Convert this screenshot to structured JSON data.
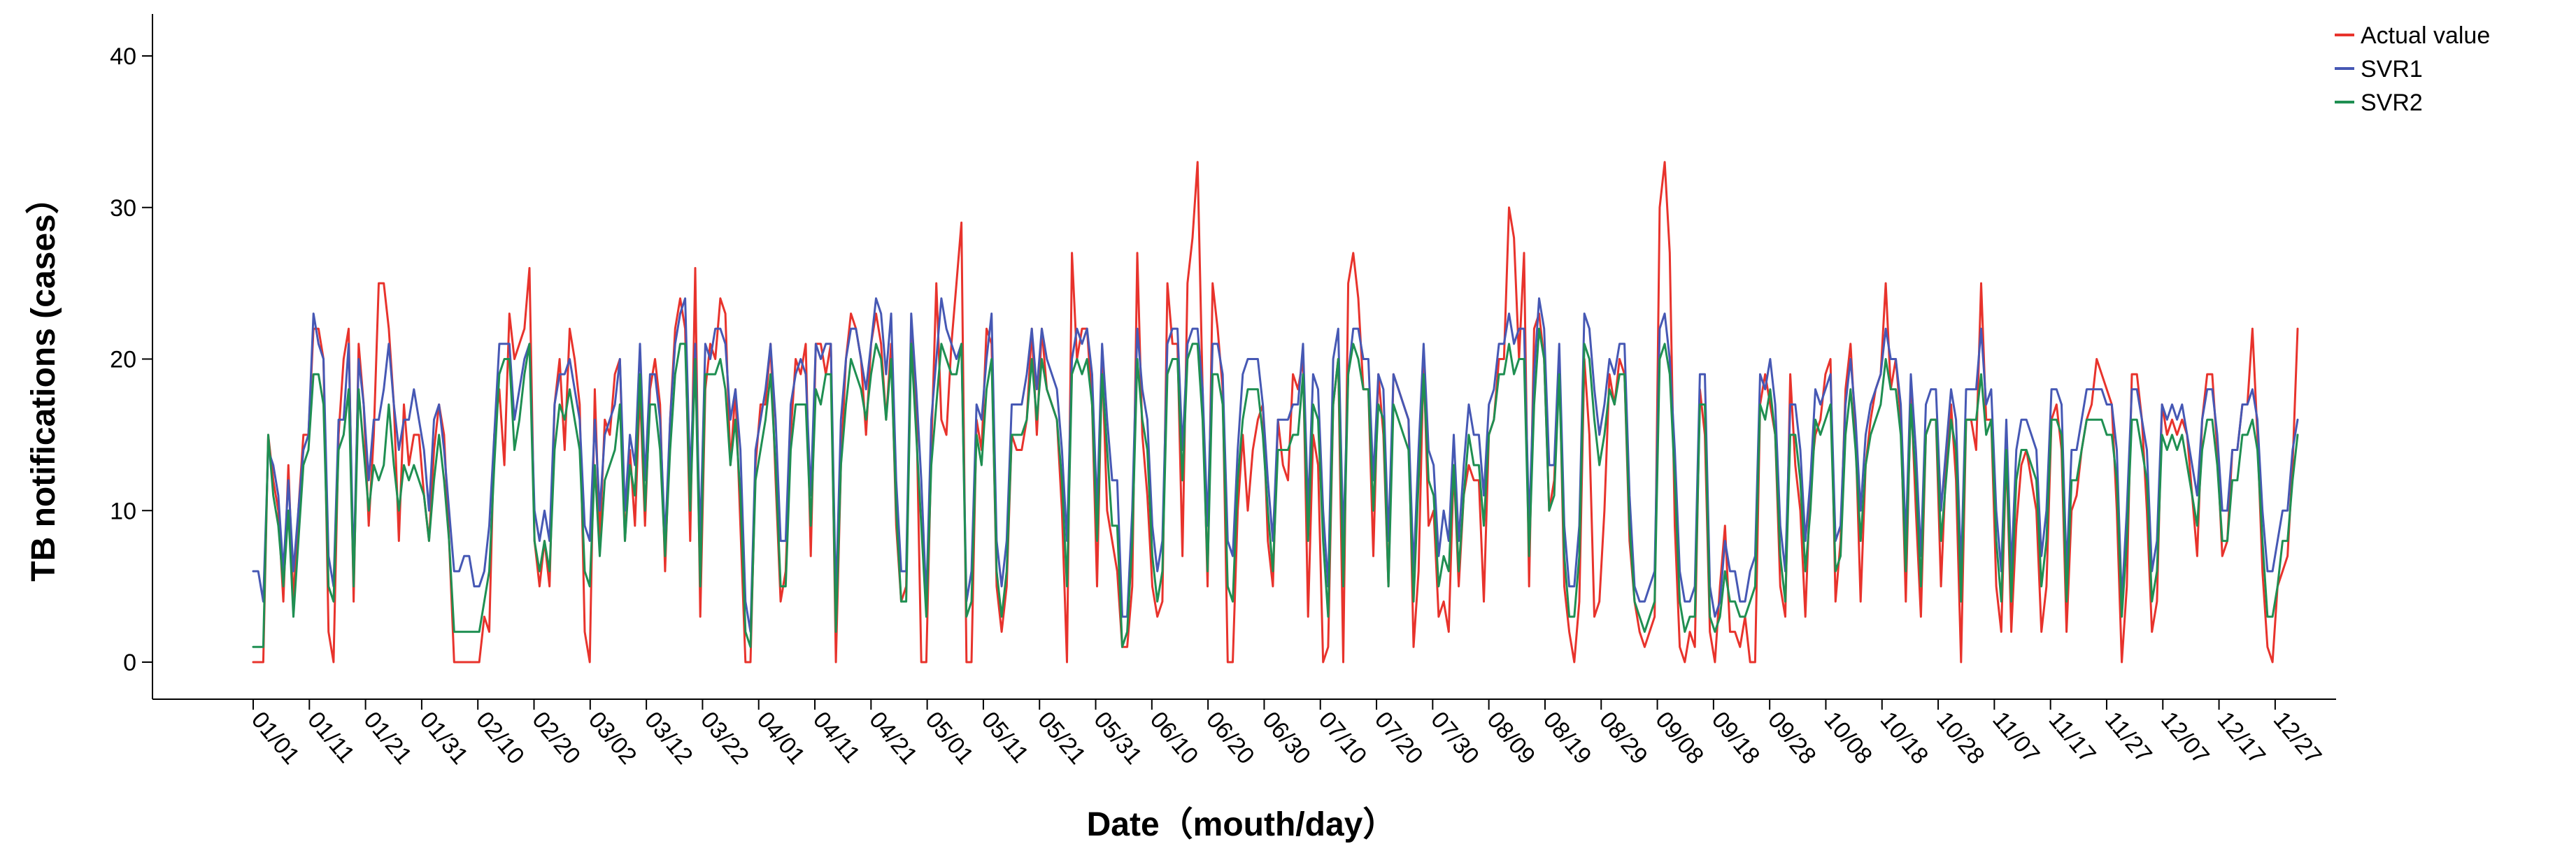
{
  "chart_data": {
    "type": "line",
    "xlabel": "Date（mouth/day）",
    "ylabel": "TB notifications (cases）",
    "ylim": [
      0,
      40
    ],
    "yticks": [
      0,
      10,
      20,
      30,
      40
    ],
    "grid": false,
    "legend_position": "top-right",
    "x_tick_labels": [
      "01/01",
      "01/11",
      "01/21",
      "01/31",
      "02/10",
      "02/20",
      "03/02",
      "03/12",
      "03/22",
      "04/01",
      "04/11",
      "04/21",
      "05/01",
      "05/11",
      "05/21",
      "05/31",
      "06/10",
      "06/20",
      "06/30",
      "07/10",
      "07/20",
      "07/30",
      "08/09",
      "08/19",
      "08/29",
      "09/08",
      "09/18",
      "09/28",
      "10/08",
      "10/18",
      "10/28",
      "11/07",
      "11/17",
      "11/27",
      "12/07",
      "12/17",
      "12/27"
    ],
    "x_start": "01/01",
    "x_end": "12/31",
    "series": [
      {
        "name": "Actual value",
        "color": "#e8332c",
        "values": [
          0,
          0,
          0,
          15,
          12,
          10,
          4,
          13,
          4,
          10,
          15,
          15,
          22,
          22,
          20,
          2,
          0,
          15,
          20,
          22,
          4,
          21,
          17,
          9,
          15,
          25,
          25,
          22,
          17,
          8,
          17,
          13,
          15,
          15,
          11,
          8,
          14,
          17,
          15,
          8,
          0,
          0,
          0,
          0,
          0,
          0,
          3,
          2,
          15,
          18,
          13,
          23,
          20,
          21,
          22,
          26,
          8,
          5,
          8,
          5,
          17,
          20,
          14,
          22,
          20,
          17,
          2,
          0,
          18,
          8,
          16,
          15,
          19,
          20,
          8,
          14,
          9,
          18,
          9,
          18,
          20,
          17,
          6,
          16,
          22,
          24,
          22,
          8,
          26,
          3,
          18,
          21,
          20,
          24,
          23,
          13,
          18,
          9,
          0,
          0,
          13,
          17,
          17,
          21,
          12,
          4,
          6,
          15,
          20,
          19,
          21,
          7,
          21,
          21,
          19,
          21,
          0,
          13,
          20,
          23,
          22,
          20,
          15,
          21,
          23,
          21,
          16,
          21,
          9,
          4,
          5,
          22,
          17,
          0,
          0,
          14,
          25,
          16,
          15,
          21,
          25,
          29,
          0,
          0,
          16,
          14,
          22,
          21,
          5,
          2,
          5,
          15,
          14,
          14,
          16,
          22,
          15,
          22,
          18,
          17,
          16,
          10,
          0,
          27,
          20,
          22,
          22,
          17,
          5,
          20,
          10,
          8,
          6,
          1,
          1,
          5,
          27,
          15,
          11,
          5,
          3,
          4,
          25,
          21,
          21,
          7,
          25,
          28,
          33,
          18,
          5,
          25,
          22,
          18,
          0,
          0,
          10,
          15,
          10,
          14,
          16,
          17,
          8,
          5,
          16,
          13,
          12,
          19,
          18,
          20,
          3,
          15,
          13,
          0,
          1,
          17,
          20,
          0,
          25,
          27,
          24,
          18,
          18,
          7,
          19,
          15,
          5,
          19,
          18,
          17,
          16,
          1,
          6,
          20,
          9,
          10,
          3,
          4,
          2,
          13,
          5,
          11,
          13,
          12,
          12,
          4,
          15,
          16,
          20,
          20,
          30,
          28,
          20,
          27,
          5,
          22,
          23,
          20,
          10,
          12,
          20,
          5,
          2,
          0,
          4,
          20,
          15,
          3,
          4,
          10,
          19,
          17,
          20,
          19,
          8,
          4,
          2,
          1,
          2,
          3,
          30,
          33,
          27,
          9,
          1,
          0,
          2,
          1,
          18,
          15,
          2,
          0,
          5,
          9,
          2,
          2,
          1,
          3,
          0,
          0,
          17,
          19,
          17,
          15,
          5,
          3,
          19,
          13,
          10,
          3,
          12,
          15,
          16,
          19,
          20,
          4,
          8,
          18,
          21,
          15,
          4,
          13,
          16,
          18,
          19,
          25,
          18,
          20,
          16,
          4,
          18,
          10,
          3,
          15,
          16,
          16,
          5,
          13,
          17,
          12,
          0,
          16,
          16,
          14,
          25,
          16,
          16,
          5,
          2,
          14,
          2,
          9,
          13,
          14,
          12,
          10,
          2,
          5,
          16,
          17,
          14,
          2,
          10,
          11,
          14,
          16,
          17,
          20,
          19,
          18,
          17,
          10,
          0,
          5,
          19,
          19,
          16,
          10,
          2,
          4,
          17,
          15,
          16,
          15,
          16,
          15,
          11,
          7,
          16,
          19,
          19,
          14,
          7,
          8,
          14,
          14,
          17,
          17,
          22,
          15,
          6,
          1,
          0,
          5,
          6,
          7,
          13,
          22
        ]
      },
      {
        "name": "SVR1",
        "color": "#4658b4",
        "values": [
          6,
          6,
          4,
          14,
          13,
          11,
          6,
          12,
          6,
          10,
          14,
          15,
          23,
          21,
          20,
          7,
          5,
          16,
          16,
          21,
          6,
          20,
          17,
          12,
          16,
          16,
          18,
          21,
          17,
          14,
          16,
          16,
          18,
          16,
          14,
          10,
          16,
          17,
          14,
          10,
          6,
          6,
          7,
          7,
          5,
          5,
          6,
          9,
          15,
          21,
          21,
          21,
          16,
          18,
          20,
          21,
          10,
          8,
          10,
          8,
          17,
          19,
          19,
          20,
          18,
          16,
          9,
          8,
          16,
          10,
          15,
          16,
          17,
          20,
          10,
          15,
          13,
          21,
          12,
          19,
          19,
          16,
          8,
          16,
          21,
          23,
          24,
          12,
          21,
          8,
          21,
          20,
          22,
          22,
          21,
          16,
          18,
          14,
          4,
          2,
          14,
          16,
          18,
          21,
          16,
          8,
          8,
          17,
          19,
          20,
          19,
          11,
          21,
          20,
          21,
          21,
          4,
          16,
          20,
          22,
          22,
          20,
          18,
          21,
          24,
          23,
          19,
          23,
          12,
          6,
          6,
          23,
          18,
          12,
          4,
          16,
          20,
          24,
          22,
          21,
          20,
          21,
          4,
          6,
          17,
          16,
          20,
          23,
          8,
          5,
          8,
          17,
          17,
          17,
          19,
          22,
          18,
          22,
          20,
          19,
          18,
          14,
          8,
          20,
          22,
          21,
          22,
          19,
          10,
          21,
          16,
          12,
          12,
          3,
          3,
          10,
          22,
          18,
          16,
          9,
          6,
          8,
          21,
          22,
          22,
          14,
          21,
          22,
          22,
          18,
          9,
          21,
          21,
          19,
          8,
          7,
          14,
          19,
          20,
          20,
          20,
          17,
          12,
          8,
          16,
          16,
          16,
          17,
          17,
          21,
          10,
          19,
          18,
          10,
          5,
          20,
          22,
          8,
          19,
          22,
          22,
          20,
          20,
          12,
          19,
          18,
          8,
          19,
          18,
          17,
          16,
          6,
          14,
          21,
          14,
          13,
          7,
          10,
          8,
          15,
          8,
          13,
          17,
          15,
          15,
          11,
          17,
          18,
          21,
          21,
          23,
          21,
          22,
          22,
          9,
          19,
          24,
          22,
          13,
          13,
          21,
          9,
          5,
          5,
          9,
          23,
          22,
          18,
          15,
          17,
          20,
          19,
          21,
          21,
          11,
          5,
          4,
          4,
          5,
          6,
          22,
          23,
          20,
          14,
          6,
          4,
          4,
          5,
          19,
          19,
          5,
          3,
          4,
          8,
          6,
          6,
          4,
          4,
          6,
          7,
          19,
          18,
          20,
          17,
          9,
          6,
          17,
          17,
          14,
          8,
          12,
          18,
          17,
          18,
          19,
          8,
          9,
          17,
          20,
          16,
          10,
          15,
          17,
          18,
          19,
          22,
          20,
          20,
          17,
          8,
          19,
          14,
          7,
          17,
          18,
          18,
          10,
          14,
          18,
          16,
          6,
          18,
          18,
          18,
          22,
          17,
          18,
          10,
          6,
          16,
          6,
          14,
          16,
          16,
          15,
          14,
          7,
          10,
          18,
          18,
          17,
          6,
          14,
          14,
          16,
          18,
          18,
          18,
          18,
          17,
          17,
          14,
          4,
          10,
          18,
          18,
          16,
          14,
          6,
          8,
          17,
          16,
          17,
          16,
          17,
          15,
          13,
          11,
          16,
          18,
          18,
          15,
          10,
          10,
          14,
          14,
          17,
          17,
          18,
          16,
          10,
          6,
          6,
          8,
          10,
          10,
          14,
          16
        ]
      },
      {
        "name": "SVR2",
        "color": "#1f8f52",
        "values": [
          1,
          1,
          1,
          15,
          11,
          9,
          5,
          10,
          3,
          8,
          13,
          14,
          19,
          19,
          17,
          5,
          4,
          14,
          15,
          18,
          5,
          18,
          14,
          10,
          13,
          12,
          13,
          17,
          13,
          10,
          13,
          12,
          13,
          12,
          11,
          8,
          12,
          15,
          12,
          8,
          2,
          2,
          2,
          2,
          2,
          2,
          4,
          6,
          13,
          19,
          20,
          20,
          14,
          16,
          19,
          21,
          8,
          6,
          8,
          6,
          14,
          17,
          16,
          18,
          16,
          14,
          6,
          5,
          13,
          7,
          12,
          13,
          14,
          17,
          8,
          13,
          11,
          19,
          10,
          17,
          17,
          14,
          7,
          14,
          19,
          21,
          21,
          10,
          20,
          5,
          19,
          19,
          19,
          20,
          18,
          13,
          16,
          11,
          2,
          1,
          12,
          14,
          16,
          19,
          13,
          5,
          5,
          14,
          17,
          17,
          17,
          9,
          18,
          17,
          19,
          19,
          2,
          13,
          17,
          20,
          19,
          18,
          16,
          19,
          21,
          20,
          16,
          20,
          10,
          4,
          4,
          21,
          15,
          9,
          3,
          13,
          17,
          21,
          20,
          19,
          19,
          21,
          3,
          4,
          15,
          13,
          18,
          20,
          6,
          3,
          6,
          15,
          15,
          15,
          16,
          20,
          16,
          20,
          18,
          17,
          16,
          12,
          5,
          19,
          20,
          19,
          20,
          17,
          8,
          19,
          14,
          9,
          9,
          1,
          2,
          8,
          20,
          16,
          14,
          7,
          4,
          6,
          19,
          20,
          20,
          12,
          20,
          21,
          21,
          16,
          6,
          19,
          19,
          17,
          5,
          4,
          12,
          16,
          18,
          18,
          18,
          15,
          10,
          6,
          14,
          14,
          14,
          15,
          15,
          19,
          8,
          17,
          16,
          8,
          3,
          17,
          20,
          5,
          19,
          21,
          20,
          18,
          18,
          10,
          17,
          16,
          5,
          17,
          16,
          15,
          14,
          4,
          12,
          19,
          12,
          11,
          5,
          7,
          6,
          13,
          6,
          11,
          15,
          13,
          13,
          9,
          15,
          16,
          19,
          19,
          21,
          19,
          20,
          20,
          7,
          17,
          22,
          20,
          10,
          11,
          19,
          7,
          3,
          3,
          7,
          21,
          20,
          16,
          13,
          15,
          18,
          17,
          19,
          19,
          9,
          4,
          3,
          2,
          3,
          4,
          20,
          21,
          19,
          12,
          4,
          2,
          3,
          3,
          17,
          17,
          3,
          2,
          3,
          6,
          4,
          4,
          3,
          3,
          4,
          5,
          17,
          16,
          18,
          15,
          7,
          4,
          15,
          15,
          12,
          6,
          10,
          16,
          15,
          16,
          17,
          6,
          7,
          15,
          18,
          14,
          8,
          13,
          15,
          16,
          17,
          20,
          18,
          18,
          15,
          6,
          17,
          12,
          5,
          15,
          16,
          16,
          8,
          12,
          16,
          14,
          4,
          16,
          16,
          16,
          19,
          15,
          16,
          8,
          4,
          14,
          4,
          12,
          14,
          14,
          13,
          12,
          5,
          8,
          16,
          16,
          15,
          4,
          12,
          12,
          14,
          16,
          16,
          16,
          16,
          15,
          15,
          12,
          3,
          8,
          16,
          16,
          14,
          12,
          4,
          6,
          15,
          14,
          15,
          14,
          15,
          13,
          11,
          9,
          14,
          16,
          16,
          13,
          8,
          8,
          12,
          12,
          15,
          15,
          16,
          14,
          8,
          3,
          3,
          5,
          8,
          8,
          12,
          15
        ]
      }
    ]
  }
}
